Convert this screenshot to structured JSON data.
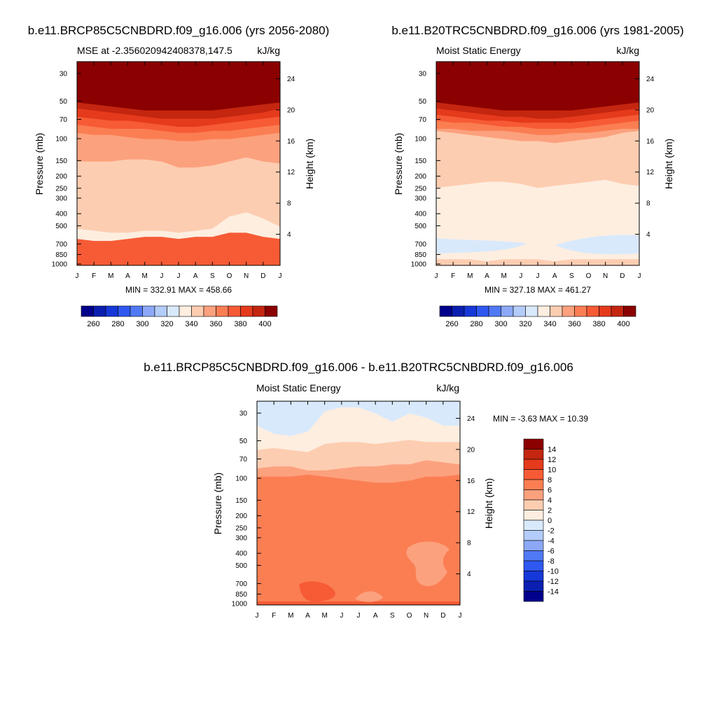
{
  "chart_data": [
    {
      "type": "heatmap",
      "title": "b.e11.BRCP85C5CNBDRD.f09_g16.006 (yrs 2056-2080)",
      "subtitle_left": "MSE at -2.356020942408378,147.5",
      "subtitle_right": "kJ/kg",
      "ylabel": "Pressure (mb)",
      "ylabel_right": "Height (km)",
      "stats": "MIN = 332.91 MAX = 458.66",
      "x_ticks": [
        "J",
        "F",
        "M",
        "A",
        "M",
        "J",
        "J",
        "A",
        "S",
        "O",
        "N",
        "D",
        "J"
      ],
      "y_ticks": [
        "30",
        "50",
        "70",
        "100",
        "150",
        "200",
        "250",
        "300",
        "400",
        "500",
        "700",
        "850",
        "1000"
      ],
      "y_ticks_right": [
        "24",
        "20",
        "16",
        "12",
        "8",
        "4"
      ],
      "colorbar": {
        "ticks": [
          "260",
          "280",
          "300",
          "320",
          "340",
          "360",
          "380",
          "400"
        ]
      },
      "bands": [
        {
          "color": "#fdeee0",
          "edge": [
            0.87,
            0.88,
            0.88,
            0.87,
            0.86,
            0.86,
            0.87,
            0.86,
            0.86,
            0.84,
            0.84,
            0.86,
            0.87
          ]
        },
        {
          "color": "#fdcdb1",
          "edge": [
            0.82,
            0.83,
            0.84,
            0.84,
            0.83,
            0.83,
            0.84,
            0.83,
            0.82,
            0.76,
            0.74,
            0.77,
            0.81
          ]
        },
        {
          "color": "#fca17e",
          "edge": [
            0.49,
            0.49,
            0.49,
            0.48,
            0.48,
            0.49,
            0.52,
            0.52,
            0.51,
            0.49,
            0.47,
            0.49,
            0.5
          ]
        },
        {
          "color": "#fb7e53",
          "edge": [
            0.35,
            0.36,
            0.36,
            0.37,
            0.38,
            0.38,
            0.39,
            0.39,
            0.38,
            0.38,
            0.37,
            0.36,
            0.35
          ]
        },
        {
          "color": "#f65b35",
          "edge": [
            0.31,
            0.32,
            0.33,
            0.33,
            0.33,
            0.34,
            0.35,
            0.35,
            0.34,
            0.34,
            0.33,
            0.32,
            0.31
          ]
        },
        {
          "color": "#e53a1c",
          "edge": [
            0.27,
            0.28,
            0.29,
            0.29,
            0.3,
            0.31,
            0.32,
            0.32,
            0.31,
            0.3,
            0.29,
            0.28,
            0.27
          ]
        },
        {
          "color": "#c42610",
          "edge": [
            0.23,
            0.24,
            0.25,
            0.26,
            0.27,
            0.28,
            0.28,
            0.28,
            0.28,
            0.27,
            0.26,
            0.25,
            0.23
          ]
        },
        {
          "color": "#8b0000",
          "edge": [
            0.2,
            0.21,
            0.22,
            0.23,
            0.24,
            0.24,
            0.24,
            0.24,
            0.24,
            0.23,
            0.22,
            0.21,
            0.2
          ]
        }
      ]
    },
    {
      "type": "heatmap",
      "title": "b.e11.B20TRC5CNBDRD.f09_g16.006 (yrs 1981-2005)",
      "subtitle_left": "Moist Static Energy",
      "subtitle_right": "kJ/kg",
      "ylabel": "Pressure (mb)",
      "ylabel_right": "Height (km)",
      "stats": "MIN = 327.18 MAX = 461.27",
      "x_ticks": [
        "J",
        "F",
        "M",
        "A",
        "M",
        "J",
        "J",
        "A",
        "S",
        "O",
        "N",
        "D",
        "J"
      ],
      "y_ticks": [
        "30",
        "50",
        "70",
        "100",
        "150",
        "200",
        "250",
        "300",
        "400",
        "500",
        "700",
        "850",
        "1000"
      ],
      "y_ticks_right": [
        "24",
        "20",
        "16",
        "12",
        "8",
        "4"
      ],
      "colorbar": {
        "ticks": [
          "260",
          "280",
          "300",
          "320",
          "340",
          "360",
          "380",
          "400"
        ]
      },
      "bands": [
        {
          "color": "#fdcdb1",
          "edge": [
            0.99,
            0.99,
            0.99,
            0.99,
            0.99,
            0.99,
            0.99,
            0.99,
            0.99,
            0.99,
            0.99,
            0.99,
            0.99
          ]
        },
        {
          "color": "#fdeee0",
          "edge": [
            0.97,
            0.97,
            0.97,
            0.98,
            0.97,
            0.97,
            0.97,
            0.98,
            0.97,
            0.97,
            0.97,
            0.97,
            0.97
          ]
        },
        {
          "color": "#fdcdb1",
          "edge": [
            0.62,
            0.61,
            0.6,
            0.59,
            0.59,
            0.6,
            0.62,
            0.61,
            0.6,
            0.59,
            0.58,
            0.6,
            0.61
          ]
        },
        {
          "color": "#fca17e",
          "edge": [
            0.34,
            0.35,
            0.36,
            0.37,
            0.38,
            0.39,
            0.39,
            0.4,
            0.39,
            0.38,
            0.37,
            0.35,
            0.34
          ]
        },
        {
          "color": "#fb7e53",
          "edge": [
            0.33,
            0.33,
            0.34,
            0.34,
            0.34,
            0.35,
            0.36,
            0.36,
            0.35,
            0.35,
            0.34,
            0.33,
            0.33
          ]
        },
        {
          "color": "#f65b35",
          "edge": [
            0.29,
            0.3,
            0.3,
            0.31,
            0.32,
            0.32,
            0.33,
            0.33,
            0.33,
            0.32,
            0.31,
            0.3,
            0.29
          ]
        },
        {
          "color": "#e53a1c",
          "edge": [
            0.26,
            0.27,
            0.28,
            0.29,
            0.29,
            0.3,
            0.3,
            0.3,
            0.3,
            0.29,
            0.28,
            0.27,
            0.26
          ]
        },
        {
          "color": "#c42610",
          "edge": [
            0.23,
            0.24,
            0.25,
            0.26,
            0.27,
            0.27,
            0.28,
            0.28,
            0.27,
            0.26,
            0.25,
            0.24,
            0.23
          ]
        },
        {
          "color": "#8b0000",
          "edge": [
            0.2,
            0.21,
            0.22,
            0.23,
            0.24,
            0.24,
            0.24,
            0.24,
            0.24,
            0.23,
            0.22,
            0.21,
            0.2
          ]
        }
      ]
    },
    {
      "type": "heatmap",
      "title": "b.e11.BRCP85C5CNBDRD.f09_g16.006 - b.e11.B20TRC5CNBDRD.f09_g16.006",
      "subtitle_left": "Moist Static Energy",
      "subtitle_right": "kJ/kg",
      "ylabel": "Pressure (mb)",
      "ylabel_right": "Height (km)",
      "stats": "MIN =  -3.63 MAX =  10.39",
      "x_ticks": [
        "J",
        "F",
        "M",
        "A",
        "M",
        "J",
        "J",
        "A",
        "S",
        "O",
        "N",
        "D",
        "J"
      ],
      "y_ticks": [
        "30",
        "50",
        "70",
        "100",
        "150",
        "200",
        "250",
        "300",
        "400",
        "500",
        "700",
        "850",
        "1000"
      ],
      "y_ticks_right": [
        "24",
        "20",
        "16",
        "12",
        "8",
        "4"
      ],
      "colorbar": {
        "ticks": [
          "14",
          "12",
          "10",
          "8",
          "6",
          "4",
          "2",
          "0",
          "-2",
          "-4",
          "-6",
          "-8",
          "-10",
          "-12",
          "-14"
        ]
      },
      "bands": [
        {
          "color": "#fca17e",
          "edge": [
            0.37,
            0.37,
            0.37,
            0.36,
            0.37,
            0.38,
            0.39,
            0.4,
            0.4,
            0.39,
            0.37,
            0.37,
            0.36
          ]
        },
        {
          "color": "#fdcdb1",
          "edge": [
            0.33,
            0.32,
            0.32,
            0.34,
            0.34,
            0.33,
            0.32,
            0.32,
            0.31,
            0.31,
            0.29,
            0.3,
            0.31
          ]
        },
        {
          "color": "#fdeee0",
          "edge": [
            0.24,
            0.23,
            0.24,
            0.25,
            0.21,
            0.2,
            0.2,
            0.21,
            0.2,
            0.19,
            0.2,
            0.2,
            0.2
          ]
        },
        {
          "color": "#d9e9fc",
          "edge": [
            0.12,
            0.16,
            0.17,
            0.15,
            0.05,
            0.03,
            0.03,
            0.06,
            0.1,
            0.06,
            0.08,
            0.12,
            0.12
          ]
        },
        {
          "color": "#b4ccf9",
          "edge": [
            0,
            0,
            0,
            0,
            0,
            0,
            0,
            0,
            0,
            0,
            0,
            0,
            0
          ]
        }
      ]
    }
  ]
}
